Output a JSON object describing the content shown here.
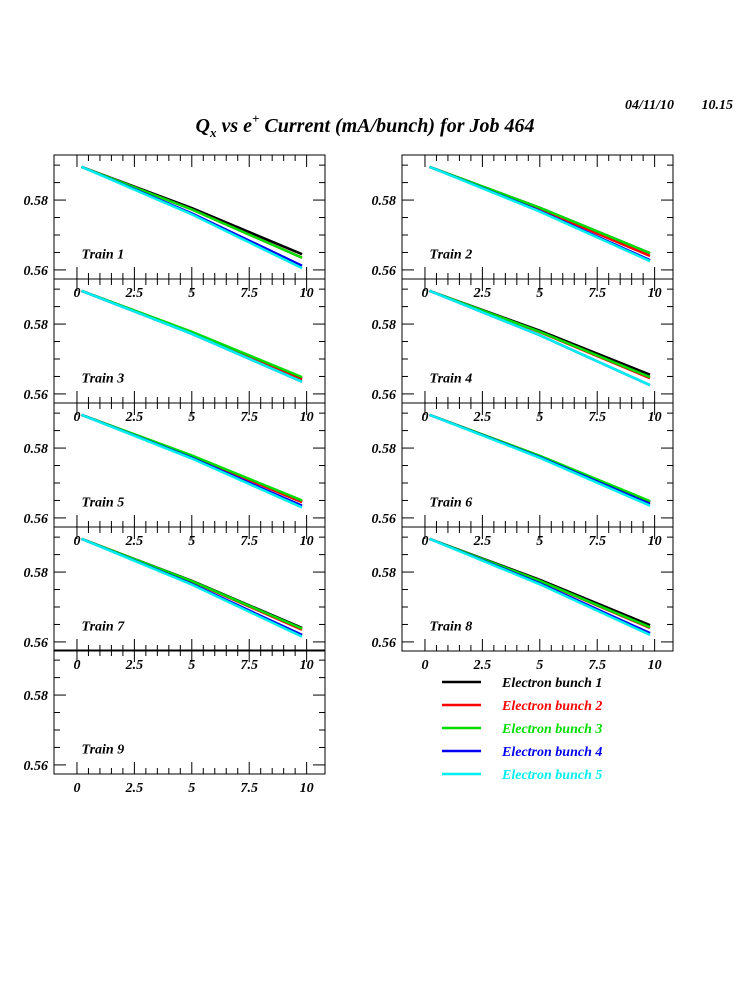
{
  "header": {
    "date": "04/11/10",
    "time": "10.15",
    "title_main": "Q",
    "title_sub": "x",
    "title_mid": " vs e",
    "title_sup": "+",
    "title_rest": " Current (mA/bunch) for Job 464"
  },
  "chart_data": {
    "type": "line",
    "xlim": [
      -1.0,
      10.8
    ],
    "ylim": [
      0.5574,
      0.5929
    ],
    "x_ticks": [
      "0",
      "2.5",
      "5",
      "7.5",
      "10"
    ],
    "y_ticks": [
      "0.56",
      "0.58"
    ],
    "grid": false,
    "legend_placement": "bottom-right",
    "legend": [
      {
        "name": "Electron bunch 1",
        "color": "#000000"
      },
      {
        "name": "Electron bunch 2",
        "color": "#ff0000"
      },
      {
        "name": "Electron bunch 3",
        "color": "#00dd00"
      },
      {
        "name": "Electron bunch 4",
        "color": "#0000ee"
      },
      {
        "name": "Electron bunch 5",
        "color": "#00eeee"
      }
    ],
    "x": [
      0.2,
      5,
      9.8
    ],
    "panels": [
      {
        "label": "Train 1",
        "series": [
          [
            0.5895,
            0.5777,
            0.5645
          ],
          [
            0.5895,
            0.5773,
            0.5635
          ],
          [
            0.5895,
            0.5773,
            0.5635
          ],
          [
            0.5895,
            0.5762,
            0.5612
          ],
          [
            0.5895,
            0.5759,
            0.5605
          ]
        ]
      },
      {
        "label": "Train 2",
        "series": [
          [
            0.5895,
            0.5778,
            0.5648
          ],
          [
            0.5895,
            0.5774,
            0.564
          ],
          [
            0.5895,
            0.5778,
            0.5648
          ],
          [
            0.5895,
            0.5769,
            0.5628
          ],
          [
            0.5895,
            0.5767,
            0.5625
          ]
        ]
      },
      {
        "label": "Train 3",
        "series": [
          [
            0.5895,
            0.5777,
            0.5645
          ],
          [
            0.5895,
            0.5774,
            0.564
          ],
          [
            0.5895,
            0.5778,
            0.5648
          ],
          [
            0.5895,
            0.5772,
            0.5635
          ],
          [
            0.5895,
            0.5772,
            0.5635
          ]
        ]
      },
      {
        "label": "Train 4",
        "series": [
          [
            0.5895,
            0.5781,
            0.5655
          ],
          [
            0.5895,
            0.5777,
            0.5645
          ],
          [
            0.5895,
            0.5778,
            0.5648
          ],
          [
            0.5895,
            0.5768,
            0.5625
          ],
          [
            0.5895,
            0.5768,
            0.5625
          ]
        ]
      },
      {
        "label": "Train 5",
        "series": [
          [
            0.5895,
            0.5778,
            0.5648
          ],
          [
            0.5895,
            0.5777,
            0.5645
          ],
          [
            0.5895,
            0.5779,
            0.565
          ],
          [
            0.5895,
            0.5772,
            0.5635
          ],
          [
            0.5895,
            0.577,
            0.563
          ]
        ]
      },
      {
        "label": "Train 6",
        "series": [
          [
            0.5895,
            0.5777,
            0.5645
          ],
          [
            0.5895,
            0.5777,
            0.5645
          ],
          [
            0.5895,
            0.5778,
            0.5648
          ],
          [
            0.5895,
            0.5774,
            0.564
          ],
          [
            0.5895,
            0.5772,
            0.5635
          ]
        ]
      },
      {
        "label": "Train 7",
        "series": [
          [
            0.5895,
            0.5775,
            0.564
          ],
          [
            0.5895,
            0.5773,
            0.5635
          ],
          [
            0.5895,
            0.5774,
            0.5638
          ],
          [
            0.5895,
            0.5766,
            0.562
          ],
          [
            0.5895,
            0.5764,
            0.5615
          ]
        ]
      },
      {
        "label": "Train 8",
        "series": [
          [
            0.5895,
            0.5778,
            0.5648
          ],
          [
            0.5895,
            0.5774,
            0.564
          ],
          [
            0.5895,
            0.5775,
            0.5642
          ],
          [
            0.5895,
            0.5768,
            0.5625
          ],
          [
            0.5895,
            0.5765,
            0.562
          ]
        ]
      },
      {
        "label": "Train 9",
        "series": []
      }
    ]
  }
}
